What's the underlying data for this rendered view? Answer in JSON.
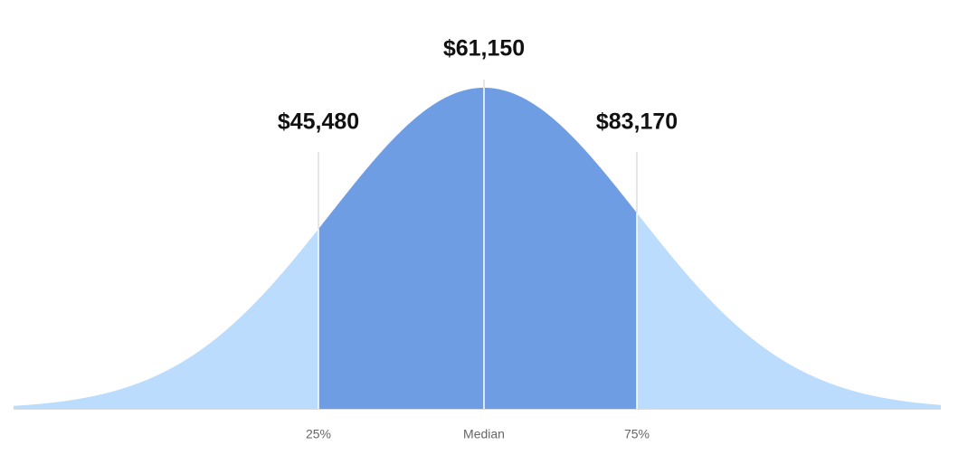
{
  "chart_data": {
    "type": "distribution",
    "categories": [
      "25%",
      "Median",
      "75%"
    ],
    "values": [
      45480,
      61150,
      83170
    ],
    "value_labels": [
      "$45,480",
      "$61,150",
      "$83,170"
    ],
    "color": "#6f9de3",
    "tail_color": "#bbdcfc"
  }
}
